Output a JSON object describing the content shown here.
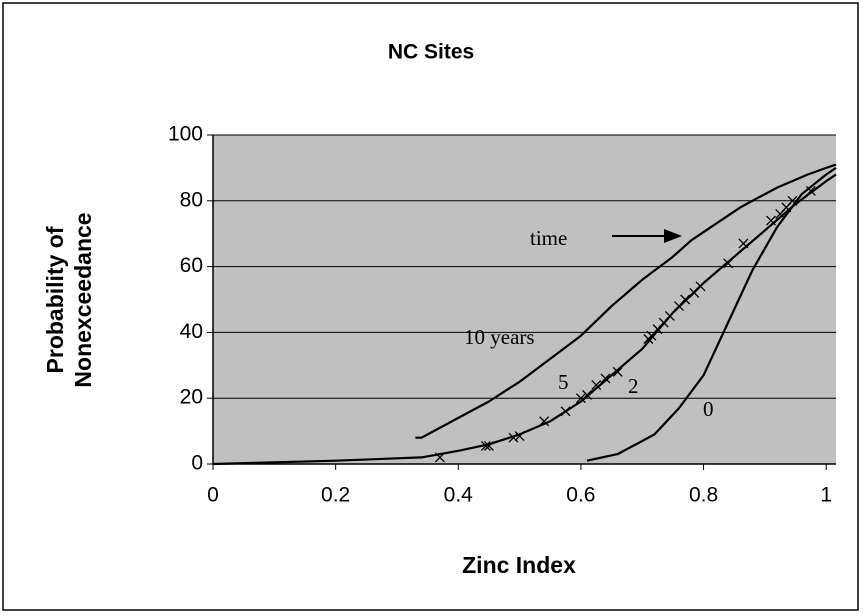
{
  "chart_data": {
    "type": "line",
    "title": "NC Sites",
    "x_label": "Zinc Index",
    "y_label": [
      "Probability of",
      "Nonexceedance"
    ],
    "xlim": [
      0,
      1.016
    ],
    "ylim": [
      0,
      100
    ],
    "xticks": [
      0,
      0.2,
      0.4,
      0.6,
      0.8,
      1
    ],
    "yticks": [
      0,
      20,
      40,
      60,
      80,
      100
    ],
    "grid": true,
    "plot_background": "#c0c0c0",
    "series": [
      {
        "color": "#000000",
        "x": [
          0.33,
          0.34,
          0.4,
          0.45,
          0.5,
          0.55,
          0.6,
          0.65,
          0.7,
          0.75,
          0.78,
          0.82,
          0.86,
          0.92,
          0.97,
          1.0,
          1.016
        ],
        "values": [
          8,
          8,
          14,
          19,
          25,
          32,
          39,
          48,
          56,
          63,
          68,
          73,
          78,
          84,
          88,
          90,
          91
        ]
      },
      {
        "color": "#000000",
        "x": [
          0,
          0.2,
          0.34,
          0.4,
          0.45,
          0.5,
          0.55,
          0.6,
          0.65,
          0.7,
          0.75,
          0.8,
          0.85,
          0.9,
          0.95,
          1.0,
          1.016
        ],
        "values": [
          0,
          1,
          2,
          4,
          6,
          9,
          13,
          19,
          27,
          35,
          46,
          55,
          63,
          71,
          79,
          86,
          88
        ]
      },
      {
        "color": "#000000",
        "x": [
          0.61,
          0.66,
          0.72,
          0.76,
          0.8,
          0.84,
          0.88,
          0.92,
          0.96,
          1.0,
          1.016
        ],
        "values": [
          1,
          3,
          9,
          17,
          27,
          43,
          59,
          72,
          82,
          88,
          90
        ]
      }
    ],
    "points": {
      "marker": "x",
      "color": "#000000",
      "x": [
        0.37,
        0.445,
        0.45,
        0.49,
        0.5,
        0.54,
        0.575,
        0.6,
        0.61,
        0.625,
        0.64,
        0.66,
        0.71,
        0.715,
        0.725,
        0.735,
        0.745,
        0.76,
        0.77,
        0.785,
        0.795,
        0.84,
        0.865,
        0.91,
        0.925,
        0.935,
        0.945,
        0.975
      ],
      "values": [
        2,
        5.5,
        5.5,
        8,
        8.5,
        13,
        16,
        20,
        21,
        24,
        26,
        28,
        38,
        39,
        41,
        43,
        45,
        48,
        50,
        52,
        54,
        61,
        67,
        74,
        76,
        78,
        80,
        83
      ]
    },
    "annotations": [
      "time",
      "10 years",
      "5",
      "2",
      "0"
    ]
  }
}
